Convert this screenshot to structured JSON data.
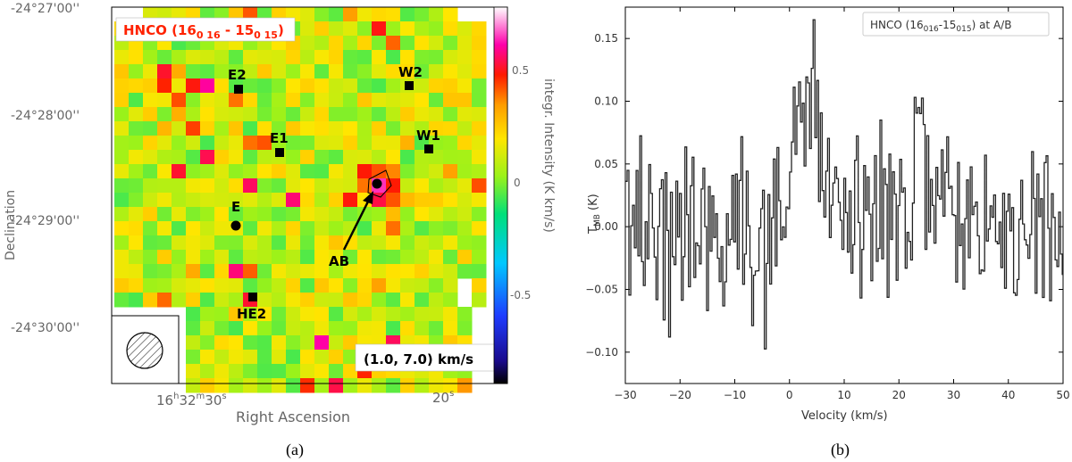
{
  "panel_a": {
    "caption": "(a)",
    "map_title_main": "HNCO (16",
    "map_title_sub1": "0 16",
    "map_title_mid": " - 15",
    "map_title_sub2": "0 15",
    "map_title_end": ")",
    "velocity_range": "(1.0, 7.0) km/s",
    "xlabel": "Right Ascension",
    "ylabel": "Declination",
    "x_tick_1": "16",
    "x_tick_1_h": "h",
    "x_tick_1_m": "32",
    "x_tick_1_mm": "m",
    "x_tick_1_s": "30",
    "x_tick_1_ss": "s",
    "x_tick_2": "20",
    "x_tick_2_s": "s",
    "y_ticks": [
      "-24°27'00''",
      "-24°28'00''",
      "-24°29'00''",
      "-24°30'00''"
    ],
    "colorbar_label": "integr. Intensity (K km/s)",
    "colorbar_ticks": [
      "0.5",
      "0",
      "-0.5"
    ],
    "colorbar_range": [
      -0.9,
      0.75
    ],
    "sources": [
      {
        "name": "E2",
        "marker": "square"
      },
      {
        "name": "W2",
        "marker": "square"
      },
      {
        "name": "E1",
        "marker": "square"
      },
      {
        "name": "W1",
        "marker": "square"
      },
      {
        "name": "E",
        "marker": "circle"
      },
      {
        "name": "HE2",
        "marker": "square"
      },
      {
        "name": "AB",
        "marker": "circle"
      }
    ]
  },
  "chart_data": [
    {
      "type": "heatmap",
      "title": "HNCO (16 0 16 - 15 0 15)",
      "xlabel": "Right Ascension",
      "ylabel": "Declination",
      "colorbar": {
        "label": "integr. Intensity (K km/s)",
        "min": -0.9,
        "max": 0.75
      },
      "peak_source": "AB",
      "velocity_range_kms": [
        1.0,
        7.0
      ]
    },
    {
      "type": "line",
      "title": "HNCO (16016-15015) at A/B",
      "xlabel": "Velocity (km/s)",
      "ylabel": "T_MB (K)",
      "xlim": [
        -30,
        50
      ],
      "ylim": [
        -0.125,
        0.175
      ],
      "xticks": [
        -30,
        -20,
        -10,
        0,
        10,
        20,
        30,
        40,
        50
      ],
      "yticks": [
        -0.1,
        -0.05,
        0.0,
        0.05,
        0.1,
        0.15
      ],
      "features": [
        {
          "center_kms": 3.5,
          "peak_K": 0.16
        },
        {
          "center_kms": 23.5,
          "peak_K": 0.1
        }
      ]
    }
  ],
  "panel_b": {
    "caption": "(b)",
    "legend_main": "HNCO (16",
    "legend_sub1": "016",
    "legend_mid": "-15",
    "legend_sub2": "015",
    "legend_end": ") at A/B",
    "xlabel": "Velocity (km/s)",
    "ylabel_T": "T",
    "ylabel_sub": "MB",
    "ylabel_unit": " (K)",
    "x_ticks": [
      "−30",
      "−20",
      "−10",
      "0",
      "10",
      "20",
      "30",
      "40",
      "50"
    ],
    "y_ticks": [
      "0.15",
      "0.10",
      "0.05",
      "0.00",
      "−0.05",
      "−0.10"
    ]
  }
}
